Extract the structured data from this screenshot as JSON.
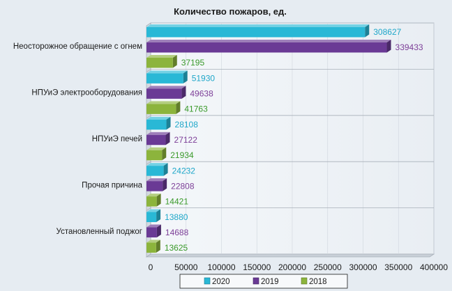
{
  "chart_data": {
    "type": "bar",
    "orientation": "horizontal",
    "title": "Количество пожаров, ед.",
    "categories": [
      "Неосторожное обращение с огнем",
      "НПУиЭ электрооборудования",
      "НПУиЭ печей",
      "Прочая причина",
      "Установленный поджог"
    ],
    "series": [
      {
        "name": "2020",
        "color": "#29b8d6",
        "label_color": "#1fa7c9",
        "values": [
          308627,
          51930,
          28108,
          24232,
          13880
        ]
      },
      {
        "name": "2019",
        "color": "#6a3a95",
        "label_color": "#7d3f98",
        "values": [
          339433,
          49638,
          27122,
          22808,
          14688
        ]
      },
      {
        "name": "2018",
        "color": "#8cb43c",
        "label_color": "#3a9a2a",
        "values": [
          37195,
          41763,
          21934,
          14421,
          13625
        ]
      }
    ],
    "x_ticks": [
      "0",
      "50000",
      "100000",
      "150000",
      "200000",
      "250000",
      "300000",
      "350000",
      "400000"
    ],
    "xlim": [
      0,
      400000
    ],
    "xlabel": "",
    "ylabel": "",
    "grid": true,
    "legend_position": "bottom"
  }
}
